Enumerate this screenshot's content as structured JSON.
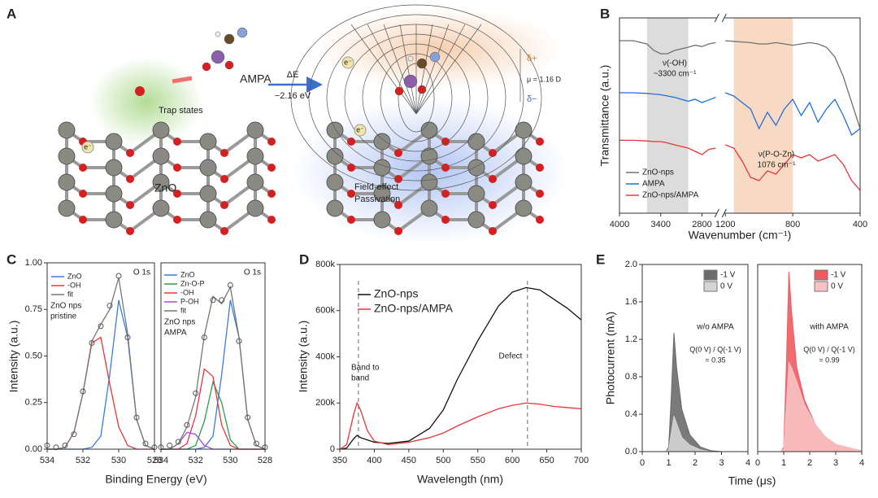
{
  "panel_a": {
    "label": "A",
    "molecule": "AMPA",
    "delta_e": "ΔE",
    "energy": "−2.16 eV",
    "trap": "Trap states",
    "substrate": "ZnO",
    "electron": "e⁻",
    "passivation": [
      "Field-effect",
      "Passivation"
    ],
    "delta_plus": "δ+",
    "delta_minus": "δ−",
    "dipole": "μ = 1.16 D"
  },
  "chart_data": [
    {
      "type": "line",
      "panel": "B",
      "x_label": "Wavenumber (cm⁻¹)",
      "y_label": "Transmittance (a.u.)",
      "xlim": [
        4000,
        400
      ],
      "xbreak": [
        2600,
        1200
      ],
      "xticks": [
        4000,
        3400,
        2800,
        1200,
        800,
        400
      ],
      "ylim": [
        0,
        3
      ],
      "bands": [
        {
          "range": [
            3600,
            3000
          ],
          "color": "#dcdcdc"
        },
        {
          "range": [
            1150,
            800
          ],
          "color": "#f7d9c4"
        }
      ],
      "annotations": [
        [
          "ν(-OH)",
          "~3300 cm⁻¹"
        ],
        [
          "ν(P-O-Zn)",
          "1076 cm⁻¹"
        ]
      ],
      "x": [
        4000,
        3800,
        3600,
        3500,
        3400,
        3300,
        3200,
        3000,
        2900,
        2800,
        2700,
        2600,
        1200,
        1150,
        1100,
        1050,
        1000,
        950,
        900,
        850,
        800,
        750,
        700,
        650,
        600,
        550,
        500,
        450,
        400
      ],
      "series": [
        {
          "name": "ZnO-nps",
          "color": "#707070",
          "values": [
            2.65,
            2.65,
            2.6,
            2.5,
            2.45,
            2.45,
            2.5,
            2.55,
            2.58,
            2.56,
            2.6,
            2.62,
            2.65,
            2.64,
            2.63,
            2.62,
            2.6,
            2.6,
            2.62,
            2.6,
            2.58,
            2.6,
            2.62,
            2.6,
            2.55,
            2.4,
            2.1,
            1.7,
            1.3
          ]
        },
        {
          "name": "AMPA",
          "color": "#1f6fd6",
          "values": [
            1.85,
            1.85,
            1.84,
            1.83,
            1.82,
            1.8,
            1.78,
            1.72,
            1.75,
            1.7,
            1.74,
            1.78,
            1.85,
            1.8,
            1.7,
            1.6,
            1.3,
            1.55,
            1.35,
            1.6,
            1.75,
            1.5,
            1.7,
            1.4,
            1.6,
            1.75,
            1.5,
            1.2,
            1.3
          ]
        },
        {
          "name": "ZnO-nps/AMPA",
          "color": "#e8353a",
          "values": [
            1.12,
            1.12,
            1.11,
            1.1,
            1.1,
            1.08,
            1.05,
            1.0,
            0.95,
            0.9,
            0.98,
            1.0,
            1.05,
            1.0,
            0.8,
            0.55,
            0.5,
            0.65,
            0.6,
            0.75,
            0.9,
            0.85,
            0.9,
            0.8,
            0.85,
            0.9,
            0.75,
            0.5,
            0.35
          ]
        }
      ]
    },
    {
      "type": "line",
      "panel": "C",
      "title": "O 1s",
      "x_label": "Binding Energy (eV)",
      "y_label": "Intensity (a.u.)",
      "xlim": [
        534,
        528
      ],
      "xticks": [
        534,
        532,
        530,
        528
      ],
      "ylim": [
        0,
        1
      ],
      "yticks": [
        {
          "value": 0,
          "label": "0.00"
        },
        {
          "value": 0.25,
          "label": "0.25"
        },
        {
          "value": 0.5,
          "label": "0.50"
        },
        {
          "value": 0.75,
          "label": "0.75"
        },
        {
          "value": 1,
          "label": "1.00"
        }
      ],
      "annotations": [
        [
          "ZnO nps",
          "pristine"
        ]
      ],
      "x": [
        534,
        533.5,
        533,
        532.5,
        532,
        531.5,
        531,
        530.5,
        530,
        529.5,
        529,
        528.5,
        528
      ],
      "series": [
        {
          "name": "ZnO",
          "color": "#3b7dd8",
          "values": [
            0,
            0,
            0,
            0,
            0,
            0.01,
            0.07,
            0.4,
            0.8,
            0.6,
            0.16,
            0.02,
            0
          ]
        },
        {
          "name": "-OH",
          "color": "#e8353a",
          "values": [
            0,
            0,
            0.01,
            0.09,
            0.3,
            0.57,
            0.6,
            0.35,
            0.12,
            0.02,
            0,
            0,
            0
          ]
        },
        {
          "name": "fit",
          "color": "#777777",
          "values": [
            0,
            0,
            0.01,
            0.09,
            0.3,
            0.58,
            0.67,
            0.75,
            0.92,
            0.62,
            0.16,
            0.02,
            0
          ]
        },
        {
          "marker": "circle",
          "color": "#555555",
          "values": [
            0.02,
            0.01,
            0.02,
            0.08,
            0.31,
            0.57,
            0.66,
            0.77,
            0.93,
            0.6,
            0.17,
            0.03,
            0.01
          ]
        }
      ]
    },
    {
      "type": "line",
      "title": "O 1s",
      "xlim": [
        534,
        528
      ],
      "xticks": [
        534,
        532,
        530,
        528
      ],
      "ylim": [
        0,
        1
      ],
      "annotations": [
        [
          "ZnO nps",
          "AMPA"
        ]
      ],
      "x": [
        534,
        533.5,
        533,
        532.5,
        532,
        531.5,
        531,
        530.5,
        530,
        529.5,
        529,
        528.5,
        528
      ],
      "series": [
        {
          "name": "ZnO",
          "color": "#3b7dd8",
          "values": [
            0,
            0,
            0,
            0,
            0,
            0.01,
            0.07,
            0.4,
            0.8,
            0.6,
            0.16,
            0.02,
            0
          ]
        },
        {
          "name": "Zn-O-P",
          "color": "#2aa04a",
          "values": [
            0,
            0,
            0,
            0,
            0.02,
            0.15,
            0.36,
            0.25,
            0.05,
            0,
            0,
            0,
            0
          ]
        },
        {
          "name": "-OH",
          "color": "#e8353a",
          "values": [
            0,
            0,
            0,
            0.03,
            0.18,
            0.43,
            0.39,
            0.13,
            0.02,
            0,
            0,
            0,
            0
          ]
        },
        {
          "name": "P-OH",
          "color": "#a64ad8",
          "values": [
            0,
            0,
            0.03,
            0.09,
            0.08,
            0.02,
            0,
            0,
            0,
            0,
            0,
            0,
            0
          ]
        },
        {
          "name": "fit",
          "color": "#777777",
          "values": [
            0,
            0,
            0.03,
            0.12,
            0.28,
            0.61,
            0.82,
            0.78,
            0.87,
            0.6,
            0.16,
            0.02,
            0
          ]
        },
        {
          "marker": "circle",
          "color": "#555555",
          "values": [
            0.01,
            0.02,
            0.04,
            0.13,
            0.3,
            0.6,
            0.8,
            0.8,
            0.88,
            0.58,
            0.17,
            0.03,
            0.01
          ]
        }
      ]
    },
    {
      "type": "line",
      "panel": "D",
      "x_label": "Wavelength (nm)",
      "y_label": "Intensity (a.u.)",
      "xlim": [
        350,
        700
      ],
      "xticks": [
        350,
        400,
        450,
        500,
        550,
        600,
        650,
        700
      ],
      "ylim": [
        0,
        800000
      ],
      "yticks": [
        0,
        {
          "value": 200000,
          "label": "200k"
        },
        {
          "value": 400000,
          "label": "400k"
        },
        {
          "value": 600000,
          "label": "600k"
        },
        {
          "value": 800000,
          "label": "800k"
        }
      ],
      "markers": [
        377,
        622
      ],
      "annotations": [
        [
          "Band to",
          "band"
        ],
        [
          "Defect"
        ]
      ],
      "x": [
        350,
        360,
        370,
        375,
        380,
        390,
        400,
        420,
        450,
        480,
        500,
        520,
        550,
        580,
        600,
        620,
        640,
        660,
        680,
        700
      ],
      "series": [
        {
          "name": "ZnO-nps",
          "color": "#111111",
          "values": [
            0,
            5000,
            45000,
            60000,
            50000,
            40000,
            30000,
            25000,
            35000,
            90000,
            170000,
            300000,
            470000,
            620000,
            680000,
            700000,
            690000,
            650000,
            610000,
            560000
          ]
        },
        {
          "name": "ZnO-nps/AMPA",
          "color": "#e8353a",
          "values": [
            0,
            20000,
            150000,
            200000,
            170000,
            80000,
            35000,
            20000,
            30000,
            50000,
            70000,
            100000,
            140000,
            175000,
            190000,
            200000,
            195000,
            185000,
            180000,
            175000
          ]
        }
      ]
    },
    {
      "type": "area",
      "panel": "E",
      "x_label": "Time (μs)",
      "y_label": "Photocurrent (mA)",
      "xlim": [
        0,
        4
      ],
      "xticks": [
        0,
        1,
        2,
        3,
        4
      ],
      "ylim": [
        0,
        2
      ],
      "yticks": [
        {
          "value": 0,
          "label": "0.0"
        },
        {
          "value": 0.4,
          "label": "0.4"
        },
        {
          "value": 0.8,
          "label": "0.8"
        },
        {
          "value": 1.2,
          "label": "1.2"
        },
        {
          "value": 1.6,
          "label": "1.6"
        },
        {
          "value": 2,
          "label": "2.0"
        }
      ],
      "annotations": [
        [
          "w/o AMPA"
        ],
        [
          "Q(0 V) / Q(-1 V)",
          "= 0.35"
        ]
      ],
      "x": [
        0,
        0.9,
        1.0,
        1.1,
        1.2,
        1.3,
        1.5,
        1.8,
        2.2,
        2.6,
        3,
        4
      ],
      "series": [
        {
          "name": "-1 V",
          "color": "#6b6b6b",
          "values": [
            0,
            0,
            0.05,
            0.6,
            1.27,
            0.9,
            0.45,
            0.18,
            0.05,
            0.01,
            0,
            0
          ]
        },
        {
          "name": "0 V",
          "color": "#d4d4d4",
          "values": [
            0,
            0,
            0.02,
            0.2,
            0.38,
            0.3,
            0.15,
            0.07,
            0.02,
            0,
            0,
            0
          ]
        }
      ]
    },
    {
      "type": "area",
      "xlim": [
        0,
        4
      ],
      "xticks": [
        0,
        1,
        2,
        3,
        4
      ],
      "ylim": [
        0,
        2
      ],
      "annotations": [
        [
          "with AMPA"
        ],
        [
          "Q(0 V) / Q(-1 V)",
          "= 0.99"
        ]
      ],
      "x": [
        0,
        0.9,
        1.0,
        1.1,
        1.2,
        1.3,
        1.5,
        1.8,
        2.2,
        2.6,
        3,
        4
      ],
      "series": [
        {
          "name": "-1 V",
          "color": "#ee5a60",
          "values": [
            0,
            0,
            0.05,
            0.9,
            1.92,
            1.5,
            0.9,
            0.55,
            0.3,
            0.15,
            0.07,
            0.01
          ]
        },
        {
          "name": "0 V",
          "color": "#f8c2c2",
          "values": [
            0,
            0,
            0.03,
            0.5,
            0.95,
            0.9,
            0.75,
            0.5,
            0.3,
            0.16,
            0.08,
            0.01
          ]
        }
      ]
    }
  ]
}
